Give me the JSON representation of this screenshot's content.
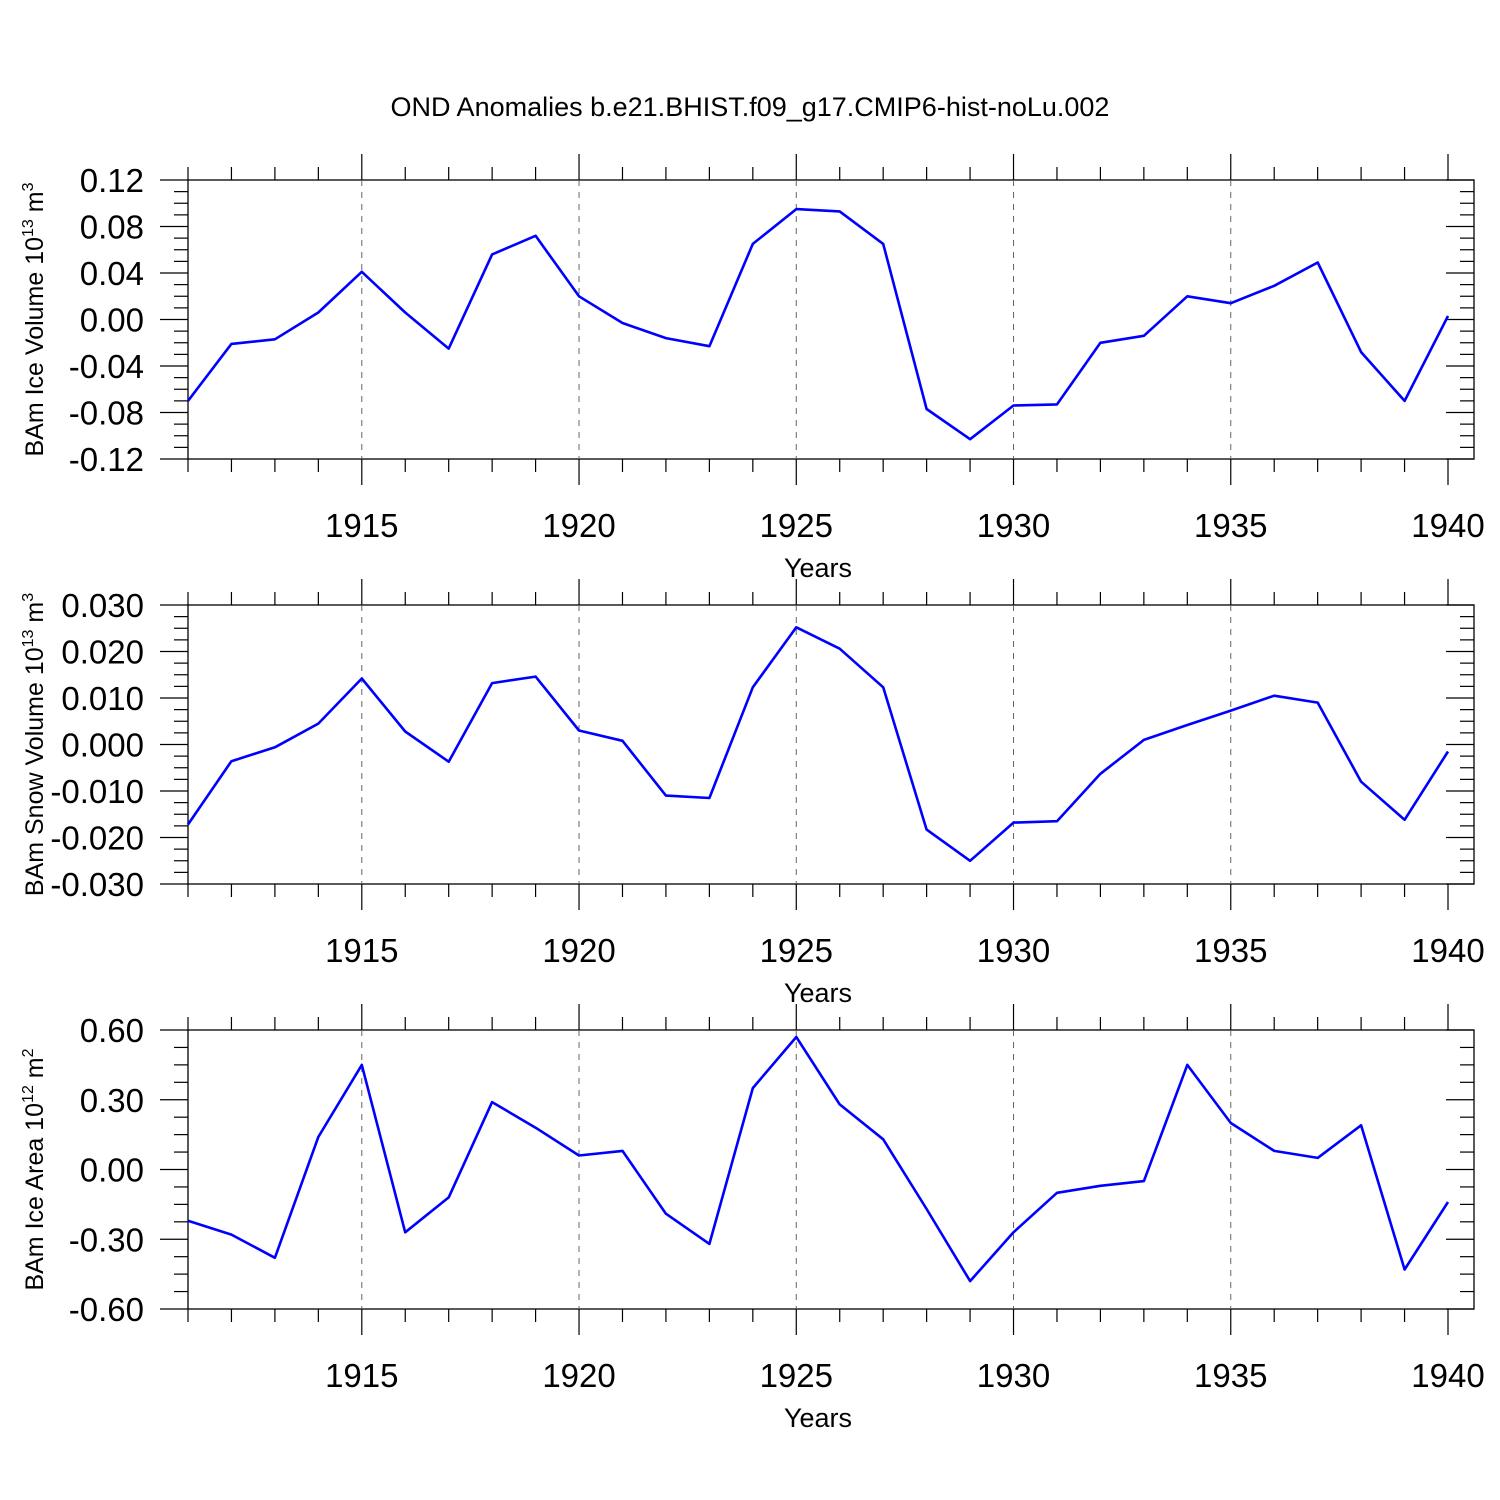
{
  "chart_data": [
    {
      "type": "line",
      "title": "OND Anomalies b.e21.BHIST.f09_g17.CMIP6-hist-noLu.002",
      "xlabel": "Years",
      "ylabel": {
        "text": "BAm Ice Volume 10",
        "sup1": "13",
        "mid": " m",
        "sup2": "3"
      },
      "xlim": [
        1911,
        1940
      ],
      "ylim": [
        -0.12,
        0.12
      ],
      "x_ticks": [
        "1915",
        "1920",
        "1925",
        "1930",
        "1935",
        "1940"
      ],
      "y_ticks": [
        "0.12",
        "0.08",
        "0.04",
        "0.00",
        "-0.04",
        "-0.08",
        "-0.12"
      ],
      "y_tick_values": [
        0.12,
        0.08,
        0.04,
        0.0,
        -0.04,
        -0.08,
        -0.12
      ],
      "grid": "dashed vertical at major x ticks",
      "x": [
        1911,
        1912,
        1913,
        1914,
        1915,
        1916,
        1917,
        1918,
        1919,
        1920,
        1921,
        1922,
        1923,
        1924,
        1925,
        1926,
        1927,
        1928,
        1929,
        1930,
        1931,
        1932,
        1933,
        1934,
        1935,
        1936,
        1937,
        1938,
        1939,
        1940
      ],
      "series": [
        {
          "color": "#0000ff",
          "values": [
            -0.07,
            -0.021,
            -0.017,
            0.006,
            0.041,
            0.006,
            -0.025,
            0.056,
            0.072,
            0.02,
            -0.003,
            -0.016,
            -0.023,
            0.065,
            0.095,
            0.093,
            0.065,
            -0.077,
            -0.103,
            -0.074,
            -0.073,
            -0.02,
            -0.014,
            0.02,
            0.014,
            0.029,
            0.049,
            -0.028,
            -0.07,
            0.003
          ]
        }
      ]
    },
    {
      "type": "line",
      "xlabel": "Years",
      "ylabel": {
        "text": "BAm Snow Volume 10",
        "sup1": "13",
        "mid": " m",
        "sup2": "3"
      },
      "xlim": [
        1911,
        1940
      ],
      "ylim": [
        -0.03,
        0.03
      ],
      "x_ticks": [
        "1915",
        "1920",
        "1925",
        "1930",
        "1935",
        "1940"
      ],
      "y_ticks": [
        "0.030",
        "0.020",
        "0.010",
        "0.000",
        "-0.010",
        "-0.020",
        "-0.030"
      ],
      "y_tick_values": [
        0.03,
        0.02,
        0.01,
        0.0,
        -0.01,
        -0.02,
        -0.03
      ],
      "grid": "dashed vertical at major x ticks",
      "x": [
        1911,
        1912,
        1913,
        1914,
        1915,
        1916,
        1917,
        1918,
        1919,
        1920,
        1921,
        1922,
        1923,
        1924,
        1925,
        1926,
        1927,
        1928,
        1929,
        1930,
        1931,
        1932,
        1933,
        1934,
        1935,
        1936,
        1937,
        1938,
        1939,
        1940
      ],
      "series": [
        {
          "color": "#0000ff",
          "values": [
            -0.0172,
            -0.0036,
            -0.0006,
            0.0045,
            0.0142,
            0.0028,
            -0.0037,
            0.0132,
            0.0146,
            0.003,
            0.0008,
            -0.011,
            -0.0115,
            0.0123,
            0.0252,
            0.0206,
            0.0123,
            -0.0183,
            -0.025,
            -0.0168,
            -0.0165,
            -0.0063,
            0.001,
            0.0042,
            0.0073,
            0.0105,
            0.009,
            -0.008,
            -0.0162,
            -0.0015
          ]
        }
      ]
    },
    {
      "type": "line",
      "xlabel": "Years",
      "ylabel": {
        "text": "BAm Ice Area 10",
        "sup1": "12",
        "mid": " m",
        "sup2": "2"
      },
      "xlim": [
        1911,
        1940
      ],
      "ylim": [
        -0.6,
        0.6
      ],
      "x_ticks": [
        "1915",
        "1920",
        "1925",
        "1930",
        "1935",
        "1940"
      ],
      "y_ticks": [
        "0.60",
        "0.30",
        "0.00",
        "-0.30",
        "-0.60"
      ],
      "y_tick_values": [
        0.6,
        0.3,
        0.0,
        -0.3,
        -0.6
      ],
      "grid": "dashed vertical at major x ticks",
      "x": [
        1911,
        1912,
        1913,
        1914,
        1915,
        1916,
        1917,
        1918,
        1919,
        1920,
        1921,
        1922,
        1923,
        1924,
        1925,
        1926,
        1927,
        1928,
        1929,
        1930,
        1931,
        1932,
        1933,
        1934,
        1935,
        1936,
        1937,
        1938,
        1939,
        1940
      ],
      "series": [
        {
          "color": "#0000ff",
          "values": [
            -0.22,
            -0.28,
            -0.38,
            0.14,
            0.45,
            -0.27,
            -0.12,
            0.29,
            0.18,
            0.06,
            0.08,
            -0.19,
            -0.32,
            0.35,
            0.57,
            0.28,
            0.13,
            -0.17,
            -0.48,
            -0.27,
            -0.1,
            -0.07,
            -0.05,
            0.45,
            0.2,
            0.08,
            0.05,
            0.19,
            -0.43,
            -0.14
          ]
        }
      ]
    }
  ]
}
